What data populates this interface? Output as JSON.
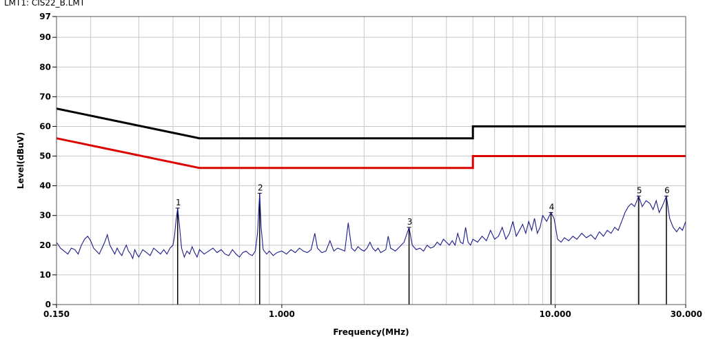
{
  "header": {
    "limit_label": "LMT1: CIS22_B.LMT"
  },
  "chart_data": {
    "type": "line",
    "xlabel": "Frequency(MHz)",
    "ylabel": "Level(dBuV)",
    "xscale": "log",
    "xlim": [
      0.15,
      30
    ],
    "ylim": [
      0,
      97
    ],
    "x_ticks": [
      {
        "value": 0.15,
        "label": "0.150"
      },
      {
        "value": 1,
        "label": "1.000"
      },
      {
        "value": 10,
        "label": "10.000"
      },
      {
        "value": 30,
        "label": "30.000"
      }
    ],
    "y_ticks": [
      {
        "value": 0,
        "label": "0"
      },
      {
        "value": 10,
        "label": "10"
      },
      {
        "value": 20,
        "label": "20"
      },
      {
        "value": 30,
        "label": "30"
      },
      {
        "value": 40,
        "label": "40"
      },
      {
        "value": 50,
        "label": "50"
      },
      {
        "value": 60,
        "label": "60"
      },
      {
        "value": 70,
        "label": "70"
      },
      {
        "value": 80,
        "label": "80"
      },
      {
        "value": 90,
        "label": "90"
      },
      {
        "value": 97,
        "label": "97"
      }
    ],
    "grid": true,
    "limits": [
      {
        "color": "#000000",
        "points": [
          [
            0.15,
            66
          ],
          [
            0.5,
            56
          ],
          [
            5,
            56
          ],
          [
            5,
            60
          ],
          [
            30,
            60
          ]
        ]
      },
      {
        "color": "#dd0000",
        "points": [
          [
            0.15,
            56
          ],
          [
            0.5,
            46
          ],
          [
            5,
            46
          ],
          [
            5,
            50
          ],
          [
            30,
            50
          ]
        ]
      }
    ],
    "markers": [
      {
        "label": "1",
        "x": 0.416,
        "y": 32.5
      },
      {
        "label": "2",
        "x": 0.83,
        "y": 37.5
      },
      {
        "label": "3",
        "x": 2.92,
        "y": 26.0
      },
      {
        "label": "4",
        "x": 9.65,
        "y": 31.0
      },
      {
        "label": "5",
        "x": 20.2,
        "y": 36.5
      },
      {
        "label": "6",
        "x": 25.5,
        "y": 36.5
      }
    ],
    "trace": {
      "color": "#1a1a8c",
      "points": [
        [
          0.15,
          21
        ],
        [
          0.155,
          19
        ],
        [
          0.16,
          18
        ],
        [
          0.165,
          17
        ],
        [
          0.17,
          19
        ],
        [
          0.175,
          18.5
        ],
        [
          0.18,
          17
        ],
        [
          0.185,
          20
        ],
        [
          0.19,
          22
        ],
        [
          0.195,
          23
        ],
        [
          0.2,
          21.5
        ],
        [
          0.205,
          19
        ],
        [
          0.21,
          18
        ],
        [
          0.215,
          17
        ],
        [
          0.22,
          19
        ],
        [
          0.225,
          21
        ],
        [
          0.23,
          23.5
        ],
        [
          0.235,
          20
        ],
        [
          0.24,
          18.5
        ],
        [
          0.245,
          17
        ],
        [
          0.25,
          19
        ],
        [
          0.255,
          17.5
        ],
        [
          0.26,
          16.5
        ],
        [
          0.265,
          18.5
        ],
        [
          0.27,
          20
        ],
        [
          0.275,
          18
        ],
        [
          0.28,
          17
        ],
        [
          0.285,
          15.5
        ],
        [
          0.29,
          18.5
        ],
        [
          0.295,
          17
        ],
        [
          0.3,
          16
        ],
        [
          0.31,
          18.5
        ],
        [
          0.32,
          17.5
        ],
        [
          0.33,
          16.5
        ],
        [
          0.34,
          19
        ],
        [
          0.35,
          18
        ],
        [
          0.36,
          17
        ],
        [
          0.37,
          18.5
        ],
        [
          0.38,
          17
        ],
        [
          0.39,
          19
        ],
        [
          0.4,
          20
        ],
        [
          0.405,
          23
        ],
        [
          0.41,
          28
        ],
        [
          0.416,
          32.5
        ],
        [
          0.422,
          27
        ],
        [
          0.43,
          19
        ],
        [
          0.44,
          16
        ],
        [
          0.45,
          18
        ],
        [
          0.46,
          17
        ],
        [
          0.47,
          19.5
        ],
        [
          0.48,
          17.5
        ],
        [
          0.49,
          16
        ],
        [
          0.5,
          18.5
        ],
        [
          0.52,
          17
        ],
        [
          0.54,
          18
        ],
        [
          0.56,
          19
        ],
        [
          0.58,
          17.5
        ],
        [
          0.6,
          18.5
        ],
        [
          0.62,
          17
        ],
        [
          0.64,
          16.5
        ],
        [
          0.66,
          18.5
        ],
        [
          0.68,
          17
        ],
        [
          0.7,
          16
        ],
        [
          0.72,
          17.5
        ],
        [
          0.74,
          18
        ],
        [
          0.76,
          17
        ],
        [
          0.78,
          16.5
        ],
        [
          0.8,
          18
        ],
        [
          0.815,
          24
        ],
        [
          0.83,
          37.5
        ],
        [
          0.84,
          26
        ],
        [
          0.855,
          18.5
        ],
        [
          0.88,
          17
        ],
        [
          0.9,
          18
        ],
        [
          0.93,
          16.5
        ],
        [
          0.96,
          17.5
        ],
        [
          1.0,
          18
        ],
        [
          1.04,
          17
        ],
        [
          1.08,
          18.5
        ],
        [
          1.12,
          17.5
        ],
        [
          1.16,
          19
        ],
        [
          1.2,
          18
        ],
        [
          1.24,
          17.5
        ],
        [
          1.28,
          18.5
        ],
        [
          1.32,
          24
        ],
        [
          1.35,
          19
        ],
        [
          1.4,
          17.5
        ],
        [
          1.45,
          18
        ],
        [
          1.5,
          21.5
        ],
        [
          1.55,
          18
        ],
        [
          1.6,
          19
        ],
        [
          1.65,
          18.5
        ],
        [
          1.7,
          18
        ],
        [
          1.75,
          27.5
        ],
        [
          1.8,
          19
        ],
        [
          1.85,
          18
        ],
        [
          1.9,
          19.5
        ],
        [
          1.95,
          18.5
        ],
        [
          2.0,
          18
        ],
        [
          2.05,
          19
        ],
        [
          2.1,
          21
        ],
        [
          2.15,
          19
        ],
        [
          2.2,
          18
        ],
        [
          2.25,
          19
        ],
        [
          2.3,
          17.5
        ],
        [
          2.4,
          18.5
        ],
        [
          2.45,
          23
        ],
        [
          2.5,
          19
        ],
        [
          2.6,
          18
        ],
        [
          2.7,
          19.5
        ],
        [
          2.8,
          21
        ],
        [
          2.92,
          26
        ],
        [
          3.0,
          20
        ],
        [
          3.1,
          18.5
        ],
        [
          3.2,
          19
        ],
        [
          3.3,
          18
        ],
        [
          3.4,
          20
        ],
        [
          3.5,
          19
        ],
        [
          3.6,
          19.5
        ],
        [
          3.7,
          21
        ],
        [
          3.8,
          20
        ],
        [
          3.9,
          22
        ],
        [
          4.0,
          21
        ],
        [
          4.1,
          20
        ],
        [
          4.2,
          21.5
        ],
        [
          4.3,
          20
        ],
        [
          4.4,
          24
        ],
        [
          4.5,
          21
        ],
        [
          4.6,
          20.5
        ],
        [
          4.7,
          26
        ],
        [
          4.8,
          21
        ],
        [
          4.9,
          20
        ],
        [
          5.0,
          22
        ],
        [
          5.2,
          21
        ],
        [
          5.4,
          23
        ],
        [
          5.6,
          21.5
        ],
        [
          5.8,
          25
        ],
        [
          6.0,
          22
        ],
        [
          6.2,
          23
        ],
        [
          6.4,
          26
        ],
        [
          6.6,
          22
        ],
        [
          6.8,
          24
        ],
        [
          7.0,
          28
        ],
        [
          7.2,
          23
        ],
        [
          7.4,
          25
        ],
        [
          7.6,
          27
        ],
        [
          7.8,
          24
        ],
        [
          8.0,
          28
        ],
        [
          8.2,
          25
        ],
        [
          8.4,
          29
        ],
        [
          8.6,
          24
        ],
        [
          8.8,
          26
        ],
        [
          9.0,
          30
        ],
        [
          9.3,
          28
        ],
        [
          9.65,
          31
        ],
        [
          9.9,
          29
        ],
        [
          10.2,
          22
        ],
        [
          10.5,
          21
        ],
        [
          10.8,
          22.5
        ],
        [
          11.2,
          21.5
        ],
        [
          11.6,
          23
        ],
        [
          12.0,
          22
        ],
        [
          12.5,
          24
        ],
        [
          13.0,
          22.5
        ],
        [
          13.5,
          23.5
        ],
        [
          14.0,
          22
        ],
        [
          14.5,
          24.5
        ],
        [
          15.0,
          23
        ],
        [
          15.5,
          25
        ],
        [
          16.0,
          24
        ],
        [
          16.5,
          26
        ],
        [
          17.0,
          25
        ],
        [
          17.5,
          28
        ],
        [
          18.0,
          31
        ],
        [
          18.5,
          33
        ],
        [
          19.0,
          34
        ],
        [
          19.5,
          33
        ],
        [
          20.2,
          36.5
        ],
        [
          20.8,
          33
        ],
        [
          21.5,
          35
        ],
        [
          22.2,
          34
        ],
        [
          22.8,
          32
        ],
        [
          23.4,
          35
        ],
        [
          24.0,
          31
        ],
        [
          24.6,
          33
        ],
        [
          25.5,
          36.5
        ],
        [
          26.2,
          29
        ],
        [
          27.0,
          26
        ],
        [
          27.8,
          24.5
        ],
        [
          28.5,
          26
        ],
        [
          29.2,
          25
        ],
        [
          30.0,
          28
        ]
      ]
    }
  }
}
